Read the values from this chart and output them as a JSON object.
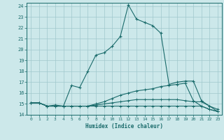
{
  "background_color": "#cce8ea",
  "grid_color": "#a0c8cc",
  "line_color": "#1a6b6b",
  "xlabel": "Humidex (Indice chaleur)",
  "xlim": [
    -0.5,
    23.5
  ],
  "ylim": [
    14,
    24.3
  ],
  "yticks": [
    14,
    15,
    16,
    17,
    18,
    19,
    20,
    21,
    22,
    23,
    24
  ],
  "xticks": [
    0,
    1,
    2,
    3,
    4,
    5,
    6,
    7,
    8,
    9,
    10,
    11,
    12,
    13,
    14,
    15,
    16,
    17,
    18,
    19,
    20,
    21,
    22,
    23
  ],
  "series1_x": [
    0,
    1,
    2,
    3,
    4,
    5,
    6,
    7,
    8,
    9,
    10,
    11,
    12,
    13,
    14,
    15,
    16,
    17,
    18,
    19,
    20,
    21,
    22,
    23
  ],
  "series1_y": [
    15.1,
    15.1,
    14.8,
    14.9,
    14.8,
    16.7,
    16.5,
    18.0,
    19.5,
    19.7,
    20.3,
    21.2,
    24.1,
    22.8,
    22.5,
    22.2,
    21.5,
    16.8,
    17.0,
    17.1,
    17.1,
    15.3,
    14.8,
    14.5
  ],
  "series2_x": [
    0,
    1,
    2,
    3,
    4,
    5,
    6,
    7,
    8,
    9,
    10,
    11,
    12,
    13,
    14,
    15,
    16,
    17,
    18,
    19,
    20,
    21,
    22,
    23
  ],
  "series2_y": [
    15.1,
    15.1,
    14.8,
    14.8,
    14.8,
    14.8,
    14.8,
    14.8,
    15.0,
    15.2,
    15.5,
    15.8,
    16.0,
    16.2,
    16.3,
    16.4,
    16.6,
    16.7,
    16.8,
    16.9,
    15.3,
    14.8,
    14.5,
    14.3
  ],
  "series3_x": [
    0,
    1,
    2,
    3,
    4,
    5,
    6,
    7,
    8,
    9,
    10,
    11,
    12,
    13,
    14,
    15,
    16,
    17,
    18,
    19,
    20,
    21,
    22,
    23
  ],
  "series3_y": [
    15.1,
    15.1,
    14.8,
    14.8,
    14.8,
    14.8,
    14.8,
    14.8,
    14.9,
    15.0,
    15.1,
    15.2,
    15.3,
    15.4,
    15.4,
    15.4,
    15.4,
    15.4,
    15.4,
    15.3,
    15.2,
    15.2,
    14.8,
    14.3
  ],
  "series4_x": [
    0,
    1,
    2,
    3,
    4,
    5,
    6,
    7,
    8,
    9,
    10,
    11,
    12,
    13,
    14,
    15,
    16,
    17,
    18,
    19,
    20,
    21,
    22,
    23
  ],
  "series4_y": [
    15.1,
    15.1,
    14.8,
    14.8,
    14.8,
    14.8,
    14.8,
    14.8,
    14.8,
    14.8,
    14.8,
    14.8,
    14.8,
    14.8,
    14.8,
    14.8,
    14.8,
    14.8,
    14.8,
    14.8,
    14.8,
    14.8,
    14.5,
    14.3
  ]
}
